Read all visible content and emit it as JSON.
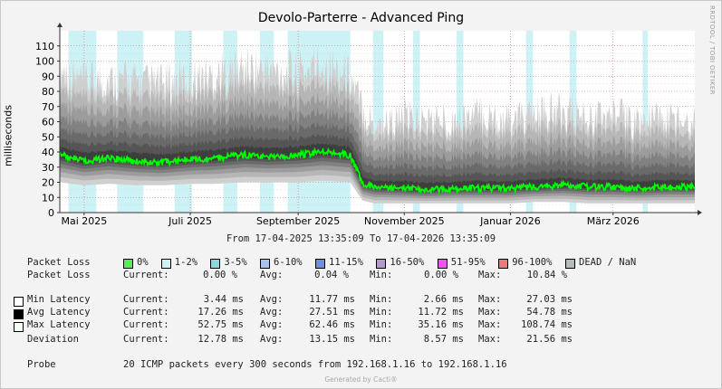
{
  "title": "Devolo-Parterre - Advanced Ping",
  "vendor": "RRDTOOL / TOBI OETIKER",
  "footer": "Generated by Cacti®",
  "colors": {
    "background": "#f3f3f3",
    "plot_background": "#ffffff",
    "latency_line": "#00ff00",
    "grid_major": "#e06060",
    "grid_minor": "#c8c8c8",
    "loss_marker": "#ccf2f6",
    "shades": [
      "#cfcfcf",
      "#b6b6b6",
      "#9c9c9c",
      "#818181",
      "#6a6a6a",
      "#555555",
      "#3e3e3e"
    ]
  },
  "chart_data": {
    "type": "area",
    "ylabel": "milliseconds",
    "ylim": [
      0,
      120
    ],
    "y_ticks": [
      0,
      10,
      20,
      30,
      40,
      50,
      60,
      70,
      80,
      90,
      100,
      110
    ],
    "x_range": [
      "2025-04-17",
      "2026-04-17"
    ],
    "x_ticks": [
      {
        "date": "2025-05-01",
        "label": "Mai 2025"
      },
      {
        "date": "2025-07-01",
        "label": "Juli 2025"
      },
      {
        "date": "2025-09-01",
        "label": "September 2025"
      },
      {
        "date": "2025-11-01",
        "label": "November 2025"
      },
      {
        "date": "2026-01-01",
        "label": "Januar 2026"
      },
      {
        "date": "2026-03-01",
        "label": "März 2026"
      }
    ],
    "grid": true,
    "packet_loss_periods": [
      [
        "2025-04-22",
        "2025-05-08"
      ],
      [
        "2025-05-20",
        "2025-06-04"
      ],
      [
        "2025-06-22",
        "2025-07-02"
      ],
      [
        "2025-07-20",
        "2025-07-28"
      ],
      [
        "2025-08-10",
        "2025-08-18"
      ],
      [
        "2025-08-26",
        "2025-10-01"
      ],
      [
        "2025-10-14",
        "2025-10-20"
      ],
      [
        "2025-11-06",
        "2025-11-10"
      ],
      [
        "2025-12-01",
        "2025-12-05"
      ],
      [
        "2026-01-10",
        "2026-01-14"
      ],
      [
        "2026-02-04",
        "2026-02-08"
      ],
      [
        "2026-03-18",
        "2026-03-21"
      ]
    ],
    "series": [
      {
        "name": "Avg Latency",
        "x": [
          "2025-04-17",
          "2025-05-01",
          "2025-05-15",
          "2025-06-01",
          "2025-06-15",
          "2025-07-01",
          "2025-07-15",
          "2025-08-01",
          "2025-08-15",
          "2025-09-01",
          "2025-09-15",
          "2025-10-01",
          "2025-10-08",
          "2025-10-15",
          "2025-11-01",
          "2025-11-15",
          "2025-12-01",
          "2025-12-15",
          "2026-01-01",
          "2026-01-15",
          "2026-02-01",
          "2026-02-15",
          "2026-03-01",
          "2026-03-15",
          "2026-04-01",
          "2026-04-17"
        ],
        "values": [
          38,
          34,
          36,
          34,
          33,
          35,
          36,
          38,
          37,
          38,
          40,
          38,
          19,
          17,
          16,
          15,
          16,
          16,
          16,
          17,
          18,
          17,
          17,
          16,
          17,
          17
        ]
      },
      {
        "name": "Max Latency",
        "x": [
          "2025-04-17",
          "2025-05-01",
          "2025-05-15",
          "2025-06-01",
          "2025-06-15",
          "2025-07-01",
          "2025-07-15",
          "2025-08-01",
          "2025-08-15",
          "2025-09-01",
          "2025-09-15",
          "2025-10-01",
          "2025-10-08",
          "2025-10-15",
          "2025-11-01",
          "2025-11-15",
          "2025-12-01",
          "2025-12-15",
          "2026-01-01",
          "2026-01-15",
          "2026-02-01",
          "2026-02-15",
          "2026-03-01",
          "2026-03-15",
          "2026-04-01",
          "2026-04-17"
        ],
        "values": [
          95,
          85,
          88,
          86,
          84,
          88,
          90,
          95,
          93,
          92,
          98,
          90,
          68,
          58,
          62,
          60,
          62,
          64,
          60,
          64,
          66,
          62,
          64,
          60,
          62,
          60
        ]
      },
      {
        "name": "Min Latency",
        "x": [
          "2025-04-17",
          "2025-05-01",
          "2025-05-15",
          "2025-06-01",
          "2025-06-15",
          "2025-07-01",
          "2025-07-15",
          "2025-08-01",
          "2025-08-15",
          "2025-09-01",
          "2025-09-15",
          "2025-10-01",
          "2025-10-08",
          "2025-10-15",
          "2025-11-01",
          "2025-11-15",
          "2025-12-01",
          "2025-12-15",
          "2026-01-01",
          "2026-01-15",
          "2026-02-01",
          "2026-02-15",
          "2026-03-01",
          "2026-03-15",
          "2026-04-01",
          "2026-04-17"
        ],
        "values": [
          20,
          18,
          19,
          18,
          18,
          19,
          19,
          20,
          20,
          20,
          21,
          20,
          8,
          6,
          6,
          6,
          6,
          6,
          6,
          7,
          7,
          6,
          6,
          6,
          6,
          6
        ]
      }
    ]
  },
  "range_text": "From 17-04-2025 13:35:09 To 17-04-2026 13:35:09",
  "legend": {
    "packet_loss_label": "Packet Loss",
    "loss_items": [
      {
        "label": "0%",
        "color": "#55ee55"
      },
      {
        "label": "1-2%",
        "color": "#ccf2f6"
      },
      {
        "label": "3-5%",
        "color": "#88d8dd"
      },
      {
        "label": "6-10%",
        "color": "#a8c4ee"
      },
      {
        "label": "11-15%",
        "color": "#7090dd"
      },
      {
        "label": "16-50%",
        "color": "#b499cc"
      },
      {
        "label": "51-95%",
        "color": "#ee55ee"
      },
      {
        "label": "96-100%",
        "color": "#ee7777"
      },
      {
        "label": "DEAD / NaN",
        "color": "#b8bcb8"
      }
    ],
    "stats_row": {
      "label": "Packet Loss",
      "current_label": "Current:",
      "current": "0.00 %",
      "avg_label": "Avg:",
      "avg": "0.04 %",
      "min_label": "Min:",
      "min": "0.00 %",
      "max_label": "Max:",
      "max": "10.84 %"
    },
    "latency_rows": [
      {
        "label": "Min Latency",
        "swatch": "#ffffff",
        "current": "3.44 ms",
        "avg": "11.77 ms",
        "min": "2.66 ms",
        "max": "27.03 ms"
      },
      {
        "label": "Avg Latency",
        "swatch": "#000000",
        "current": "17.26 ms",
        "avg": "27.51 ms",
        "min": "11.72 ms",
        "max": "54.78 ms"
      },
      {
        "label": "Max Latency",
        "swatch": "#f4fff4",
        "current": "52.75 ms",
        "avg": "62.46 ms",
        "min": "35.16 ms",
        "max": "108.74 ms"
      },
      {
        "label": "Deviation",
        "swatch": "",
        "current": "12.78 ms",
        "avg": "13.15 ms",
        "min": "8.57 ms",
        "max": "21.56 ms"
      }
    ],
    "stat_labels": {
      "current": "Current:",
      "avg": "Avg:",
      "min": "Min:",
      "max": "Max:"
    },
    "probe_label": "Probe",
    "probe_text": "20 ICMP packets every 300 seconds from 192.168.1.16 to 192.168.1.16"
  }
}
